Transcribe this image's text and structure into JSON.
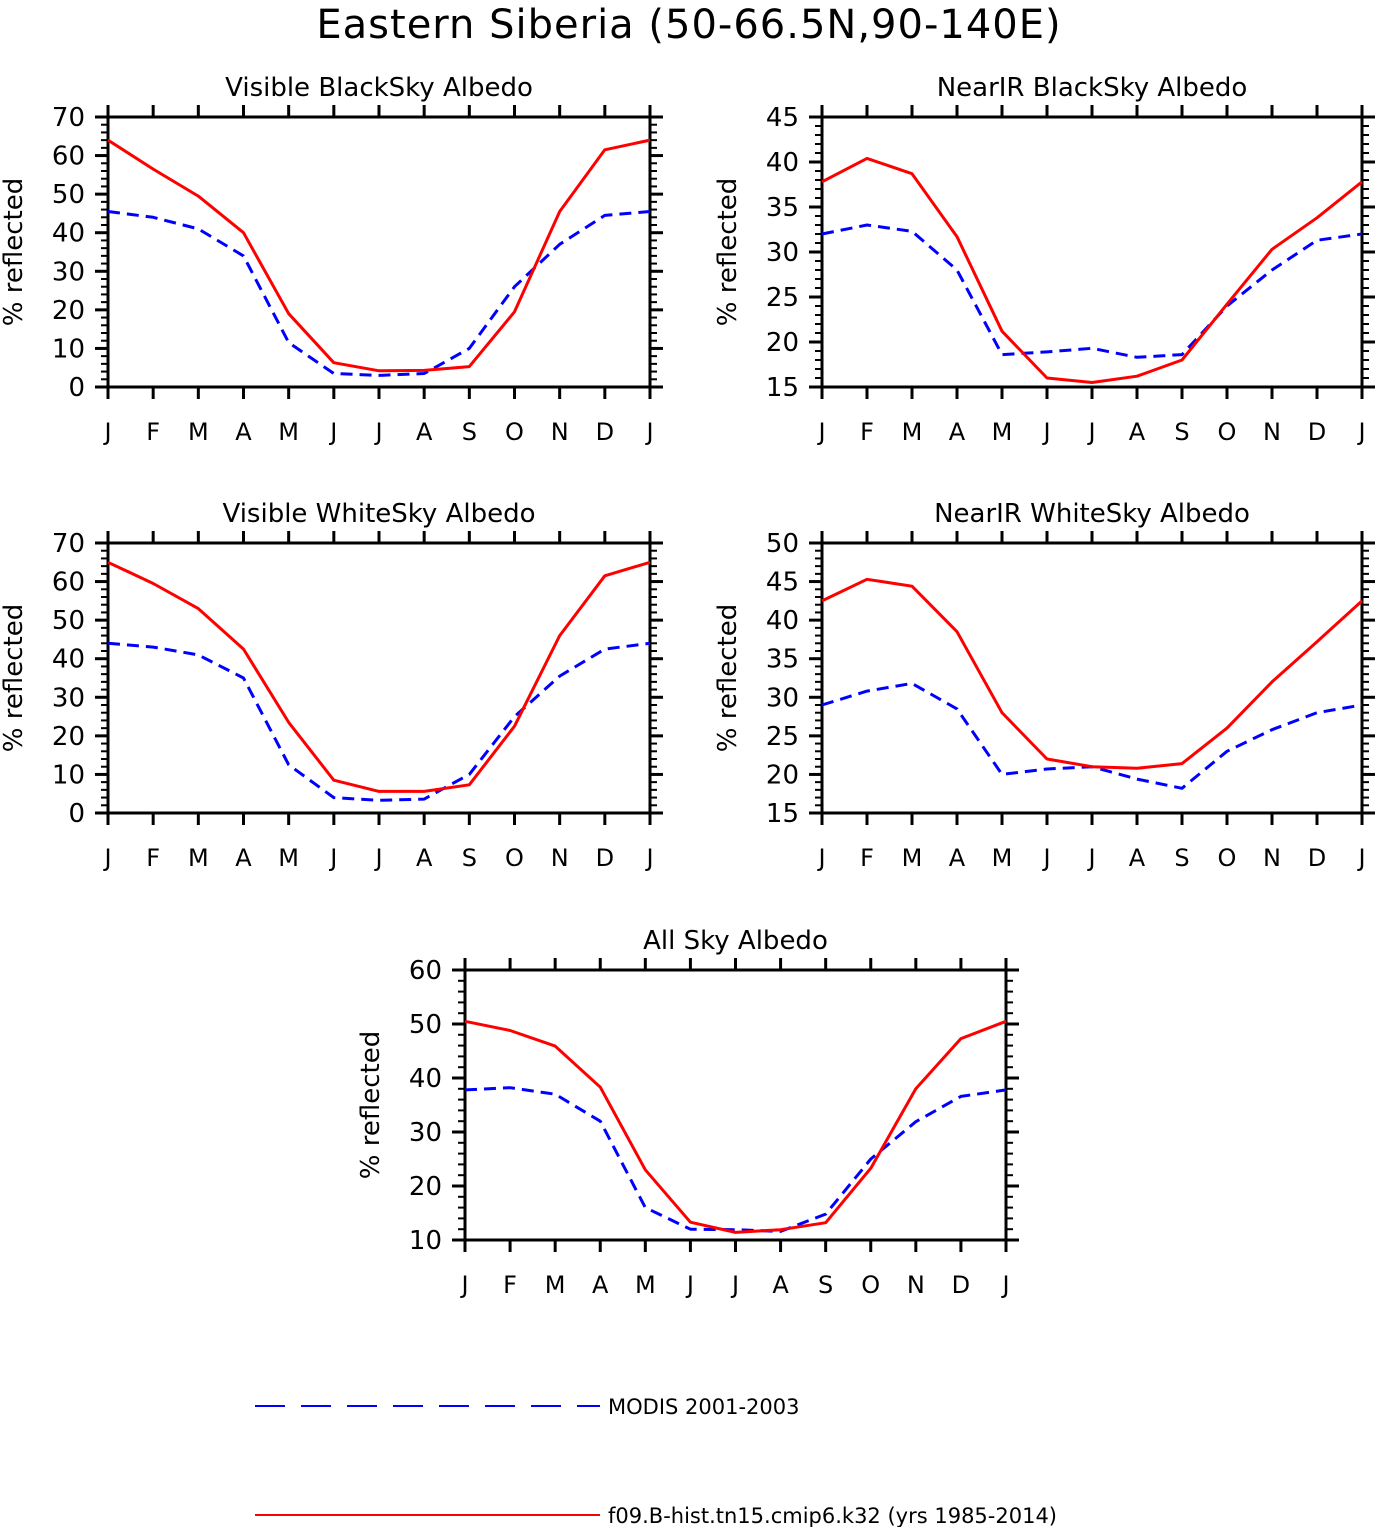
{
  "figure": {
    "title": "Eastern Siberia (50-66.5N,90-140E)"
  },
  "chart_data": [
    {
      "type": "line",
      "title": "Visible BlackSky Albedo",
      "ylabel": "% reflected",
      "xlabel": "",
      "categories": [
        "J",
        "F",
        "M",
        "A",
        "M",
        "J",
        "J",
        "A",
        "S",
        "O",
        "N",
        "D",
        "J"
      ],
      "ylim": [
        0,
        70
      ],
      "yticks": [
        0,
        10,
        20,
        30,
        40,
        50,
        60,
        70
      ],
      "grid": false,
      "series": [
        {
          "name": "MODIS 2001-2003",
          "color": "#0000ff",
          "dash": true,
          "values": [
            45.5,
            44,
            41,
            34,
            11.5,
            3.5,
            3,
            3.5,
            10,
            26,
            37,
            44.5,
            45.5
          ]
        },
        {
          "name": "f09.B-hist.tn15.cmip6.k32 (yrs 1985-2014)",
          "color": "#ff0000",
          "dash": false,
          "values": [
            64,
            56.5,
            49.5,
            40,
            19,
            6.3,
            4.2,
            4.3,
            5.3,
            19.5,
            45.5,
            61.5,
            64
          ]
        }
      ]
    },
    {
      "type": "line",
      "title": "NearIR BlackSky Albedo",
      "ylabel": "% reflected",
      "xlabel": "",
      "categories": [
        "J",
        "F",
        "M",
        "A",
        "M",
        "J",
        "J",
        "A",
        "S",
        "O",
        "N",
        "D",
        "J"
      ],
      "ylim": [
        15,
        45
      ],
      "yticks": [
        15,
        20,
        25,
        30,
        35,
        40,
        45
      ],
      "grid": false,
      "series": [
        {
          "name": "MODIS 2001-2003",
          "color": "#0000ff",
          "dash": true,
          "values": [
            32,
            33,
            32.3,
            28,
            18.6,
            18.9,
            19.3,
            18.3,
            18.6,
            24,
            28,
            31.3,
            32
          ]
        },
        {
          "name": "f09.B-hist.tn15.cmip6.k32 (yrs 1985-2014)",
          "color": "#ff0000",
          "dash": false,
          "values": [
            37.8,
            40.4,
            38.7,
            31.7,
            21.2,
            16,
            15.5,
            16.2,
            18,
            24.2,
            30.3,
            33.8,
            37.8
          ]
        }
      ]
    },
    {
      "type": "line",
      "title": "Visible WhiteSky Albedo",
      "ylabel": "% reflected",
      "xlabel": "",
      "categories": [
        "J",
        "F",
        "M",
        "A",
        "M",
        "J",
        "J",
        "A",
        "S",
        "O",
        "N",
        "D",
        "J"
      ],
      "ylim": [
        0,
        70
      ],
      "yticks": [
        0,
        10,
        20,
        30,
        40,
        50,
        60,
        70
      ],
      "grid": false,
      "series": [
        {
          "name": "MODIS 2001-2003",
          "color": "#0000ff",
          "dash": true,
          "values": [
            44,
            43,
            41,
            35,
            12.5,
            4,
            3.3,
            3.6,
            10,
            25,
            35.5,
            42.5,
            44
          ]
        },
        {
          "name": "f09.B-hist.tn15.cmip6.k32 (yrs 1985-2014)",
          "color": "#ff0000",
          "dash": false,
          "values": [
            65,
            59.5,
            53,
            42.5,
            23.5,
            8.5,
            5.6,
            5.6,
            7.3,
            22.5,
            46,
            61.5,
            65
          ]
        }
      ]
    },
    {
      "type": "line",
      "title": "NearIR WhiteSky Albedo",
      "ylabel": "% reflected",
      "xlabel": "",
      "categories": [
        "J",
        "F",
        "M",
        "A",
        "M",
        "J",
        "J",
        "A",
        "S",
        "O",
        "N",
        "D",
        "J"
      ],
      "ylim": [
        15,
        50
      ],
      "yticks": [
        15,
        20,
        25,
        30,
        35,
        40,
        45,
        50
      ],
      "grid": false,
      "series": [
        {
          "name": "MODIS 2001-2003",
          "color": "#0000ff",
          "dash": true,
          "values": [
            29,
            30.8,
            31.8,
            28.5,
            20,
            20.7,
            21,
            19.4,
            18.2,
            23,
            25.8,
            28,
            29
          ]
        },
        {
          "name": "f09.B-hist.tn15.cmip6.k32 (yrs 1985-2014)",
          "color": "#ff0000",
          "dash": false,
          "values": [
            42.5,
            45.3,
            44.4,
            38.5,
            28,
            22,
            21,
            20.8,
            21.4,
            26,
            32,
            37.2,
            42.5
          ]
        }
      ]
    },
    {
      "type": "line",
      "title": "All Sky Albedo",
      "ylabel": "% reflected",
      "xlabel": "",
      "categories": [
        "J",
        "F",
        "M",
        "A",
        "M",
        "J",
        "J",
        "A",
        "S",
        "O",
        "N",
        "D",
        "J"
      ],
      "ylim": [
        10,
        60
      ],
      "yticks": [
        10,
        20,
        30,
        40,
        50,
        60
      ],
      "grid": false,
      "series": [
        {
          "name": "MODIS 2001-2003",
          "color": "#0000ff",
          "dash": true,
          "values": [
            37.8,
            38.2,
            37,
            32,
            16,
            12,
            11.9,
            11.6,
            14.8,
            25,
            31.9,
            36.6,
            37.8
          ]
        },
        {
          "name": "f09.B-hist.tn15.cmip6.k32 (yrs 1985-2014)",
          "color": "#ff0000",
          "dash": false,
          "values": [
            50.5,
            48.8,
            45.9,
            38.3,
            23,
            13.3,
            11.4,
            11.9,
            13.2,
            23.3,
            38,
            47.3,
            50.5
          ]
        }
      ]
    }
  ],
  "legend": {
    "placement": "bottom",
    "entries": [
      {
        "label": "MODIS 2001-2003",
        "color": "#0000ff",
        "dash": true
      },
      {
        "label": "f09.B-hist.tn15.cmip6.k32 (yrs 1985-2014)",
        "color": "#ff0000",
        "dash": false
      }
    ]
  }
}
